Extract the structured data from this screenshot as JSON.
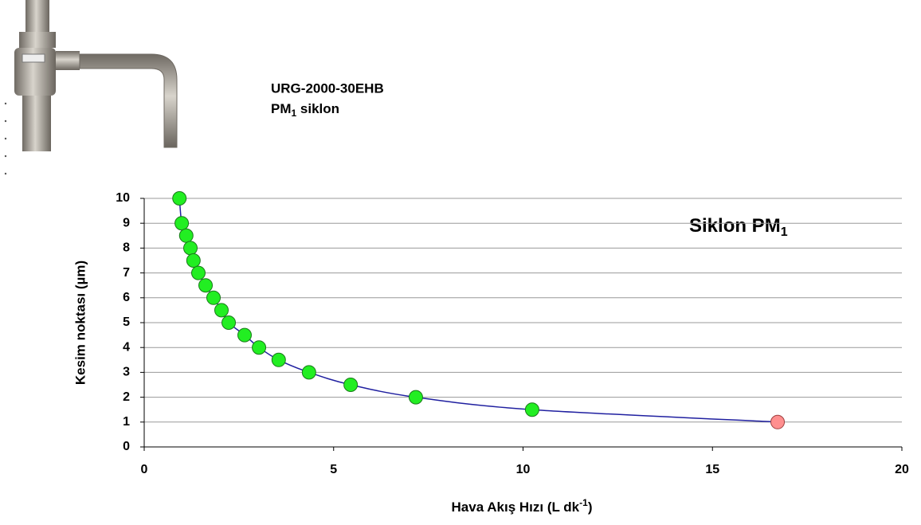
{
  "header": {
    "model": "URG-2000-30EHB",
    "name_parts": [
      "PM",
      "1",
      " siklon"
    ]
  },
  "chart_data": {
    "type": "line",
    "title_parts": [
      "Siklon PM",
      "1"
    ],
    "y_label": "Kesim noktası (µm)",
    "x_label_parts": [
      "Hava Akış Hızı (L dk",
      "-1",
      ")"
    ],
    "x": [
      0.93,
      0.99,
      1.11,
      1.22,
      1.3,
      1.43,
      1.62,
      1.83,
      2.04,
      2.23,
      2.65,
      3.03,
      3.55,
      4.35,
      5.45,
      7.17,
      10.24,
      16.72
    ],
    "values": [
      10,
      9,
      8.5,
      8,
      7.5,
      7,
      6.5,
      6,
      5.5,
      5,
      4.5,
      4,
      3.5,
      3,
      2.5,
      2,
      1.5,
      1
    ],
    "line_color": "#2020a0",
    "marker_color": "#22ee22",
    "last_marker_color": "#ff8f8f",
    "xlim": [
      0,
      20
    ],
    "xticks": [
      0,
      5,
      10,
      15,
      20
    ],
    "ylim": [
      0,
      10
    ],
    "yticks": [
      0,
      1,
      2,
      3,
      4,
      5,
      6,
      7,
      8,
      9,
      10
    ],
    "grid": true
  }
}
